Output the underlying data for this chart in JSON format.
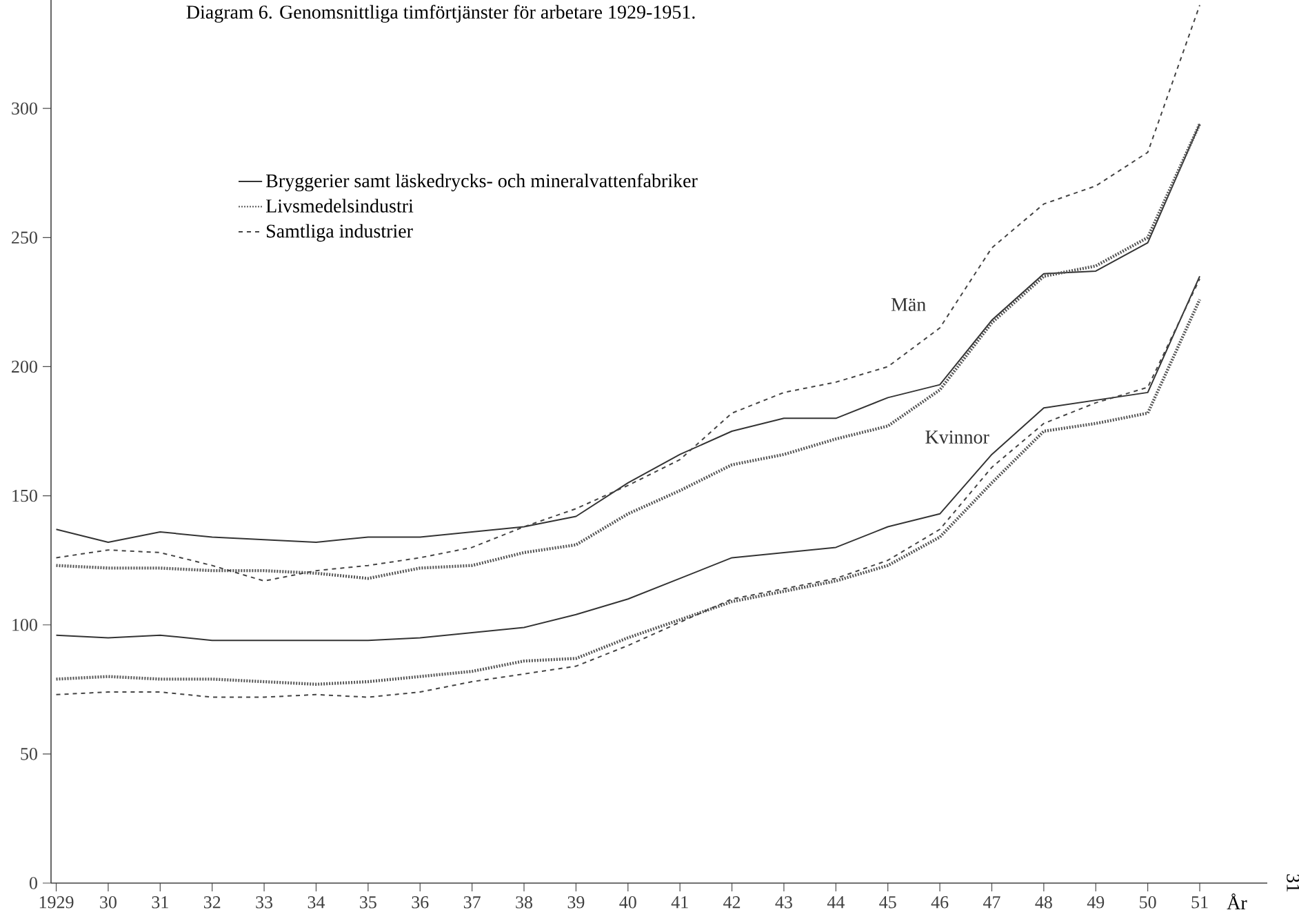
{
  "chart_data": {
    "type": "line",
    "title": "Diagram 6.  Genomsnittliga timförtjänster för arbetare 1929-1951.",
    "xlabel": "År",
    "x": [
      1929,
      1930,
      1931,
      1932,
      1933,
      1934,
      1935,
      1936,
      1937,
      1938,
      1939,
      1940,
      1941,
      1942,
      1943,
      1944,
      1945,
      1946,
      1947,
      1948,
      1949,
      1950,
      1951
    ],
    "series": [
      {
        "name": "Bryggerier samt läskedrycks- och mineralvattenfabriker",
        "color": "#333333",
        "line_style": "solid",
        "values": [
          137,
          132,
          136,
          134,
          133,
          132,
          134,
          134,
          136,
          138,
          142,
          155,
          166,
          175,
          180,
          180,
          188,
          193,
          218,
          236,
          237,
          248,
          294
        ]
      },
      {
        "name": "Livsmedelsindustri",
        "color": "#555555",
        "line_style": "dotted",
        "values": [
          123,
          122,
          122,
          121,
          121,
          120,
          118,
          122,
          123,
          128,
          131,
          143,
          152,
          162,
          166,
          172,
          177,
          191,
          217,
          235,
          239,
          250,
          294
        ]
      },
      {
        "name": "Samtliga industrier",
        "color": "#444444",
        "line_style": "dashed",
        "values": [
          126,
          129,
          128,
          123,
          117,
          121,
          123,
          126,
          130,
          138,
          145,
          154,
          164,
          182,
          190,
          194,
          200,
          215,
          246,
          263,
          270,
          283,
          340
        ]
      },
      {
        "color": "#333333",
        "line_style": "solid",
        "values": [
          96,
          95,
          96,
          94,
          94,
          94,
          94,
          95,
          97,
          99,
          104,
          110,
          118,
          126,
          128,
          130,
          138,
          143,
          166,
          184,
          187,
          190,
          235
        ]
      },
      {
        "color": "#555555",
        "line_style": "dotted",
        "values": [
          79,
          80,
          79,
          79,
          78,
          77,
          78,
          80,
          82,
          86,
          87,
          95,
          102,
          109,
          113,
          117,
          123,
          134,
          155,
          175,
          178,
          182,
          226
        ]
      },
      {
        "color": "#444444",
        "line_style": "dashed",
        "values": [
          73,
          74,
          74,
          72,
          72,
          73,
          72,
          74,
          78,
          81,
          84,
          92,
          101,
          110,
          114,
          118,
          125,
          137,
          161,
          178,
          186,
          192,
          234
        ]
      }
    ],
    "xlim": [
      1928.9,
      1952.3
    ],
    "ylim": [
      0,
      342
    ],
    "xticks": [
      {
        "value": 1929,
        "label": "1929"
      },
      {
        "value": 1930,
        "label": "30"
      },
      {
        "value": 1931,
        "label": "31"
      },
      {
        "value": 1932,
        "label": "32"
      },
      {
        "value": 1933,
        "label": "33"
      },
      {
        "value": 1934,
        "label": "34"
      },
      {
        "value": 1935,
        "label": "35"
      },
      {
        "value": 1936,
        "label": "36"
      },
      {
        "value": 1937,
        "label": "37"
      },
      {
        "value": 1938,
        "label": "38"
      },
      {
        "value": 1939,
        "label": "39"
      },
      {
        "value": 1940,
        "label": "40"
      },
      {
        "value": 1941,
        "label": "41"
      },
      {
        "value": 1942,
        "label": "42"
      },
      {
        "value": 1943,
        "label": "43"
      },
      {
        "value": 1944,
        "label": "44"
      },
      {
        "value": 1945,
        "label": "45"
      },
      {
        "value": 1946,
        "label": "46"
      },
      {
        "value": 1947,
        "label": "47"
      },
      {
        "value": 1948,
        "label": "48"
      },
      {
        "value": 1949,
        "label": "49"
      },
      {
        "value": 1950,
        "label": "50"
      },
      {
        "value": 1951,
        "label": "51"
      }
    ],
    "yticks": [
      0,
      50,
      100,
      150,
      200,
      250,
      300
    ],
    "legend": "top left",
    "grid": false,
    "annotations": [
      "Män",
      "Kvinnor",
      "31"
    ]
  }
}
